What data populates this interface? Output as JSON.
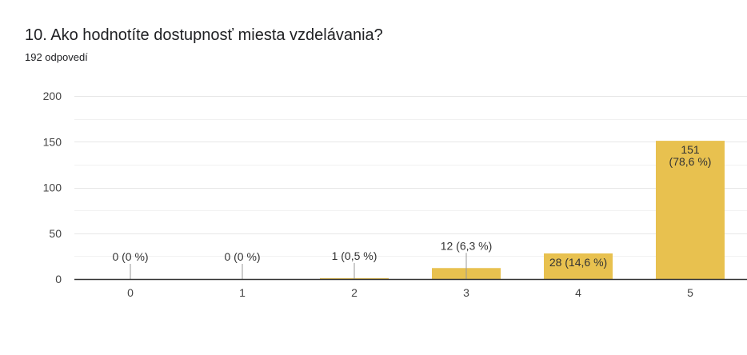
{
  "question": {
    "title": "10. Ako hodnotíte dostupnosť miesta vzdelávania?",
    "responses": "192 odpovedí"
  },
  "colors": {
    "bar": "#e8c14f",
    "grid": "#e6e6e6",
    "axis": "#333333",
    "leader": "#999999"
  },
  "chart_data": {
    "type": "bar",
    "categories": [
      "0",
      "1",
      "2",
      "3",
      "4",
      "5"
    ],
    "values": [
      0,
      0,
      1,
      12,
      28,
      151
    ],
    "data_labels": [
      [
        "0 (0 %)"
      ],
      [
        "0 (0 %)"
      ],
      [
        "1 (0,5 %)"
      ],
      [
        "12 (6,3 %)"
      ],
      [
        "28 (14,6 %)"
      ],
      [
        "151",
        "(78,6 %)"
      ]
    ],
    "yticks": [
      0,
      50,
      100,
      150,
      200
    ],
    "ylim": [
      0,
      200
    ],
    "grid": true,
    "legend": "none",
    "title": "",
    "xlabel": "",
    "ylabel": ""
  }
}
